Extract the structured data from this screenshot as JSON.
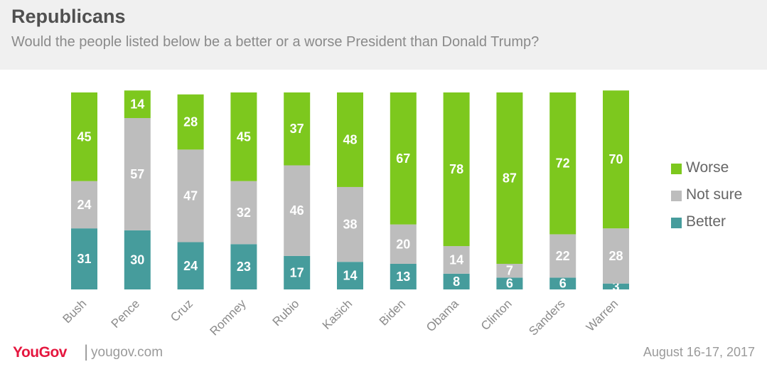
{
  "header": {
    "title": "Republicans",
    "subtitle": "Would the people listed below be a better or a worse President than Donald Trump?"
  },
  "footer": {
    "logo": "YouGov",
    "separator": "|",
    "url": "yougov.com",
    "date": "August 16-17, 2017"
  },
  "colors": {
    "worse": "#7dc81e",
    "not_sure": "#bdbdbd",
    "better": "#469c9c"
  },
  "chart_data": {
    "type": "bar",
    "stacked": true,
    "title": "Republicans",
    "subtitle": "Would the people listed below be a better or a worse President than Donald Trump?",
    "categories": [
      "Bush",
      "Pence",
      "Cruz",
      "Romney",
      "Rubio",
      "Kasich",
      "Biden",
      "Obama",
      "Clinton",
      "Sanders",
      "Warren"
    ],
    "series": [
      {
        "name": "Better",
        "values": [
          31,
          30,
          24,
          23,
          17,
          14,
          13,
          8,
          6,
          6,
          3
        ]
      },
      {
        "name": "Not sure",
        "values": [
          24,
          57,
          47,
          32,
          46,
          38,
          20,
          14,
          7,
          22,
          28
        ]
      },
      {
        "name": "Worse",
        "values": [
          45,
          14,
          28,
          45,
          37,
          48,
          67,
          78,
          87,
          72,
          70
        ]
      }
    ],
    "legend": [
      "Worse",
      "Not sure",
      "Better"
    ],
    "legend_position": "right",
    "xlabel": "",
    "ylabel": "",
    "ylim": [
      0,
      100
    ]
  }
}
